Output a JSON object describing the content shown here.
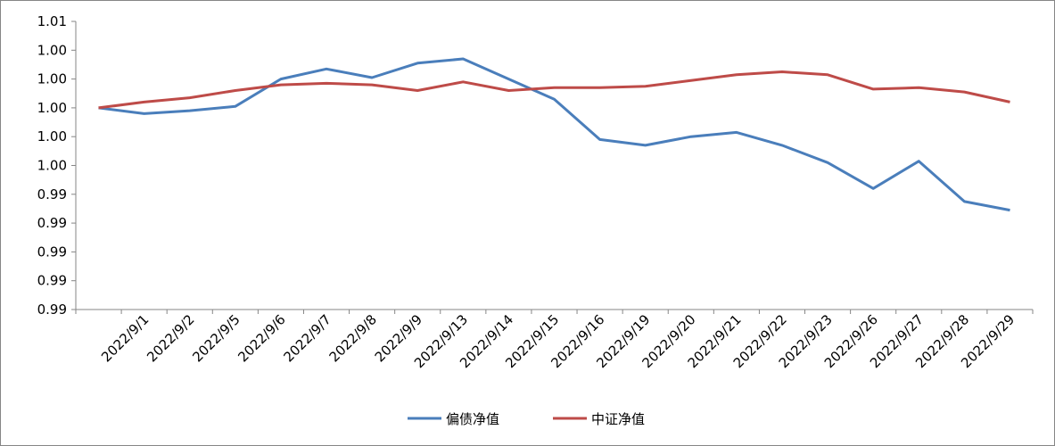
{
  "chart_data": {
    "type": "line",
    "categories": [
      null,
      "2022/9/1",
      "2022/9/2",
      "2022/9/5",
      "2022/9/6",
      "2022/9/7",
      "2022/9/8",
      "2022/9/9",
      "2022/9/13",
      "2022/9/14",
      "2022/9/15",
      "2022/9/16",
      "2022/9/19",
      "2022/9/20",
      "2022/9/21",
      "2022/9/22",
      "2022/9/23",
      "2022/9/26",
      "2022/9/27",
      "2022/9/28",
      "2022/9/29"
    ],
    "series": [
      {
        "name": "偏债净值",
        "color": "#4a7ebb",
        "values": [
          1.0,
          0.9996,
          0.9998,
          1.0001,
          1.002,
          1.0027,
          1.0021,
          1.0031,
          1.0034,
          1.002,
          1.0006,
          0.9978,
          0.9974,
          0.998,
          0.9983,
          0.9974,
          0.9962,
          0.9944,
          0.9963,
          0.9935,
          0.9929
        ]
      },
      {
        "name": "中证净值",
        "color": "#be4b48",
        "values": [
          1.0,
          1.0004,
          1.0007,
          1.0012,
          1.0016,
          1.0017,
          1.0016,
          1.0012,
          1.0018,
          1.0012,
          1.0014,
          1.0014,
          1.0015,
          1.0019,
          1.0023,
          1.0025,
          1.0023,
          1.0013,
          1.0014,
          1.0011,
          1.0004
        ]
      }
    ],
    "ylim": [
      0.986,
      1.006
    ],
    "yticks": [
      {
        "value": 0.986,
        "label": "0.99"
      },
      {
        "value": 0.988,
        "label": "0.99"
      },
      {
        "value": 0.99,
        "label": "0.99"
      },
      {
        "value": 0.992,
        "label": "0.99"
      },
      {
        "value": 0.994,
        "label": "0.99"
      },
      {
        "value": 0.996,
        "label": "1.00"
      },
      {
        "value": 0.998,
        "label": "1.00"
      },
      {
        "value": 1.0,
        "label": "1.00"
      },
      {
        "value": 1.002,
        "label": "1.00"
      },
      {
        "value": 1.004,
        "label": "1.00"
      },
      {
        "value": 1.006,
        "label": "1.01"
      }
    ],
    "grid": false,
    "legend": "bottom"
  }
}
